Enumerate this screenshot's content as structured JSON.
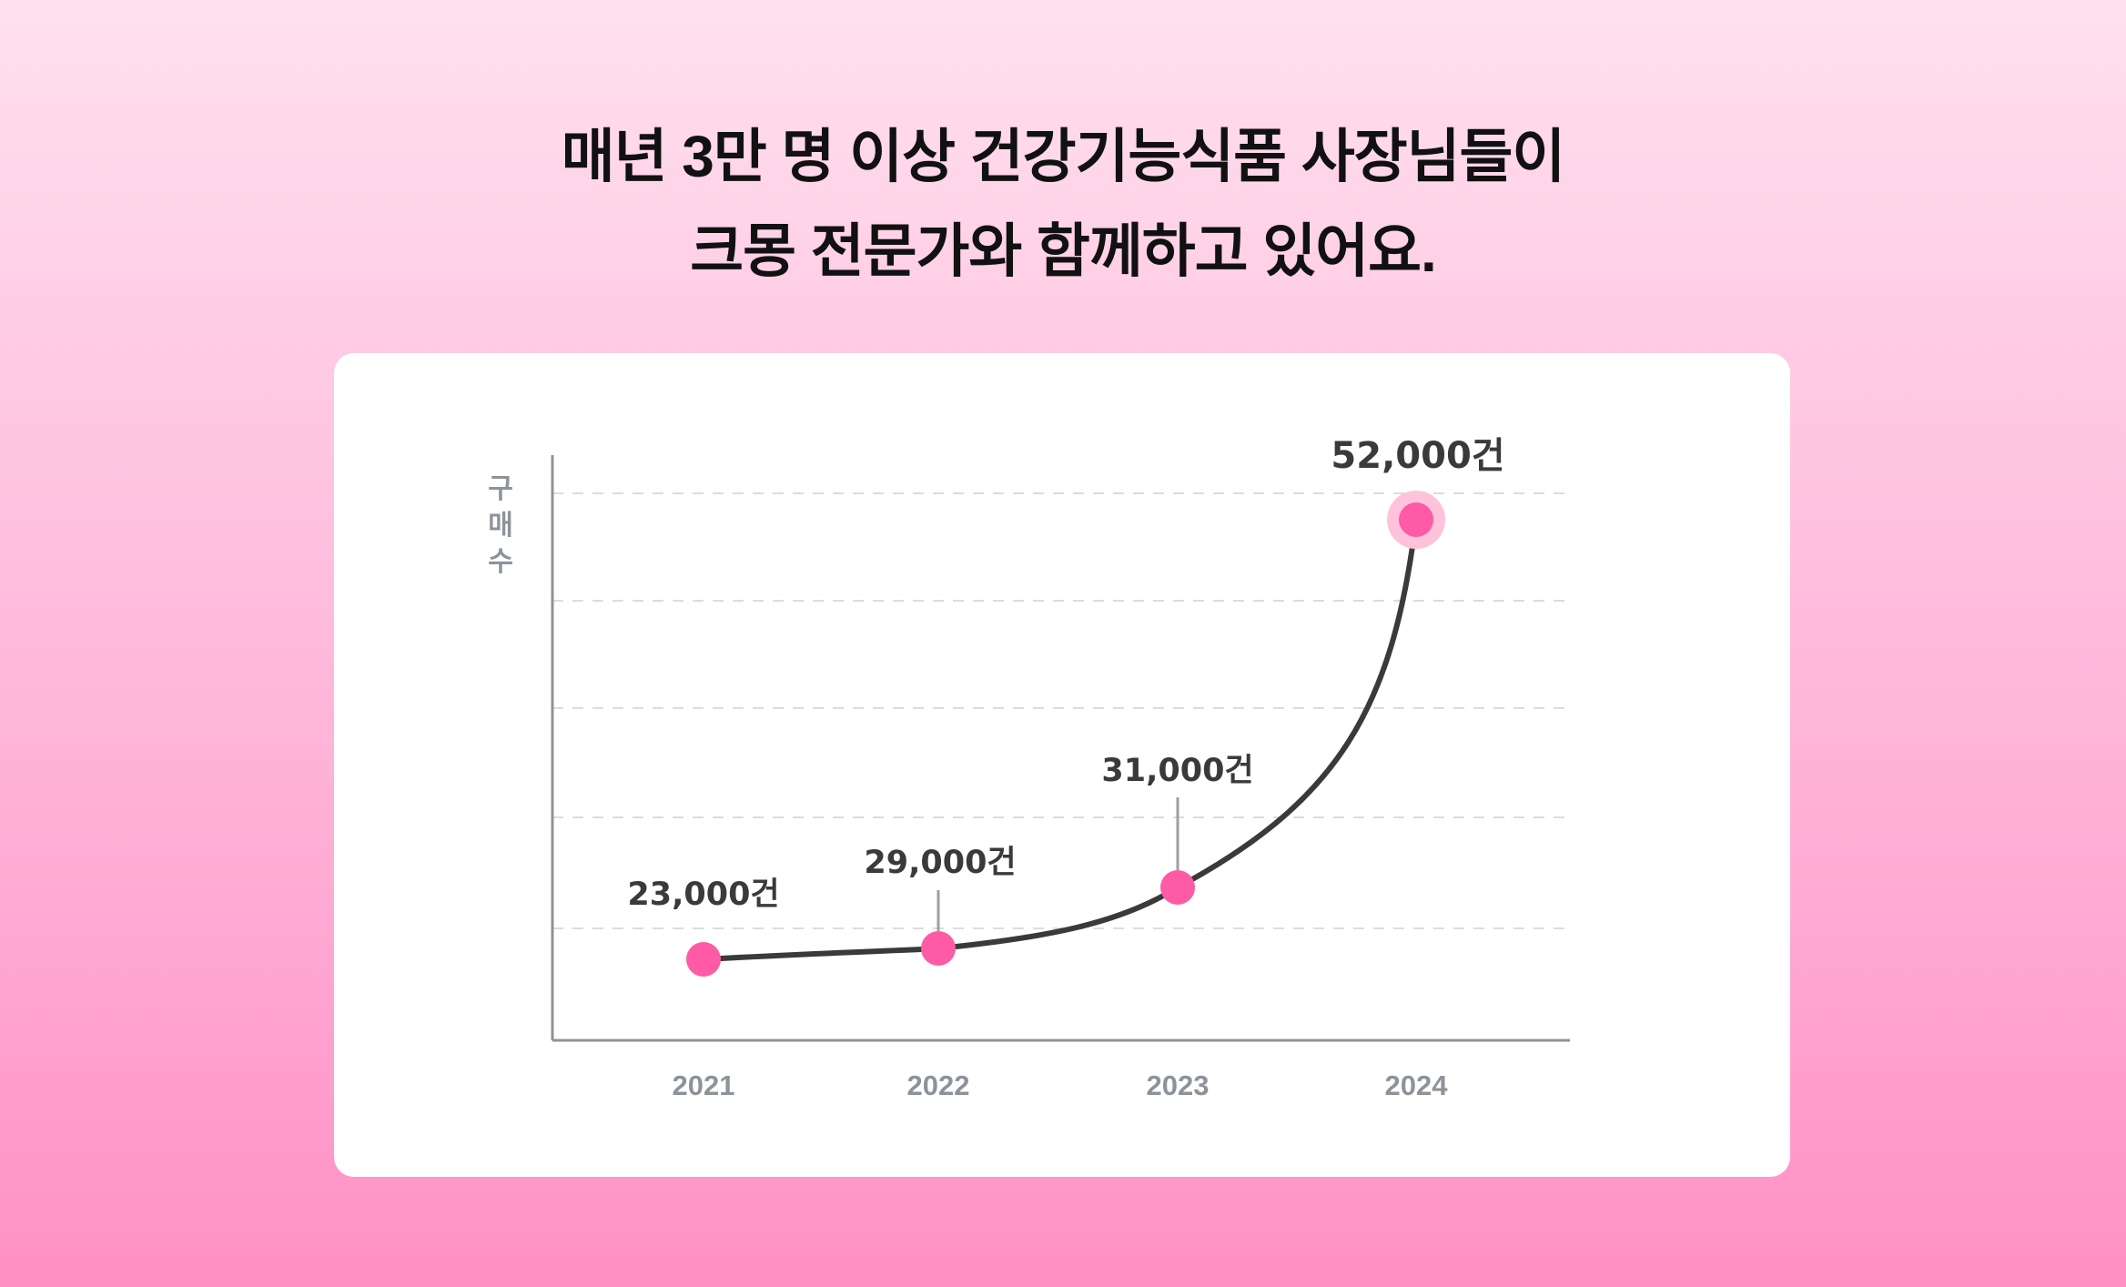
{
  "headline": {
    "line1": "매년 3만 명 이상 건강기능식품 사장님들이",
    "line2": "크몽 전문가와 함께하고 있어요."
  },
  "colors": {
    "background_top": "#ffe1ee",
    "background_bottom": "#ff90c4",
    "point": "#ff5aa5",
    "point_halo": "#ffc2db",
    "line": "#3a3a3a",
    "axis": "#8d9399",
    "grid": "#d9dde1",
    "label_text": "#3a3a3a"
  },
  "chart_data": {
    "type": "line",
    "title": "",
    "xlabel": "",
    "ylabel": "구매수",
    "categories": [
      "2021",
      "2022",
      "2023",
      "2024"
    ],
    "values": [
      23000,
      29000,
      31000,
      52000
    ],
    "data_labels": [
      "23,000건",
      "29,000건",
      "31,000건",
      "52,000건"
    ],
    "highlighted_point": "2024",
    "grid": "horizontal-dashed",
    "curve": "smooth",
    "legend": "none"
  }
}
